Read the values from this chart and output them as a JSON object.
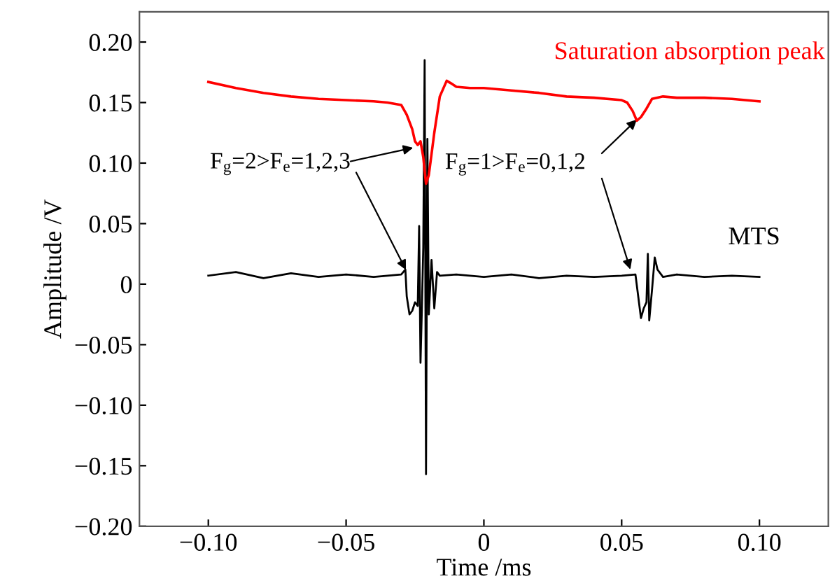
{
  "chart_data": {
    "type": "line",
    "xlabel": "Time /ms",
    "ylabel": "Amplitude /V",
    "series": [
      {
        "name": "Saturation absorption peak",
        "color": "#ff0000",
        "x": [
          -0.1,
          -0.09,
          -0.08,
          -0.07,
          -0.06,
          -0.05,
          -0.04,
          -0.035,
          -0.03,
          -0.028,
          -0.026,
          -0.025,
          -0.024,
          -0.023,
          -0.022,
          -0.021,
          -0.02,
          -0.018,
          -0.016,
          -0.0135,
          -0.012,
          -0.01,
          -0.005,
          0,
          0.01,
          0.02,
          0.03,
          0.04,
          0.05,
          0.052,
          0.054,
          0.0555,
          0.057,
          0.059,
          0.061,
          0.065,
          0.07,
          0.08,
          0.09,
          0.1
        ],
        "values": [
          0.167,
          0.162,
          0.158,
          0.155,
          0.153,
          0.152,
          0.151,
          0.15,
          0.148,
          0.14,
          0.128,
          0.118,
          0.115,
          0.118,
          0.105,
          0.083,
          0.09,
          0.125,
          0.155,
          0.168,
          0.166,
          0.163,
          0.162,
          0.162,
          0.16,
          0.158,
          0.155,
          0.154,
          0.152,
          0.15,
          0.143,
          0.135,
          0.138,
          0.145,
          0.153,
          0.155,
          0.154,
          0.154,
          0.153,
          0.151
        ]
      },
      {
        "name": "MTS",
        "color": "#000000",
        "x": [
          -0.1,
          -0.09,
          -0.08,
          -0.07,
          -0.06,
          -0.05,
          -0.04,
          -0.03,
          -0.0285,
          -0.028,
          -0.027,
          -0.026,
          -0.025,
          -0.024,
          -0.0235,
          -0.023,
          -0.0225,
          -0.022,
          -0.0215,
          -0.021,
          -0.0205,
          -0.02,
          -0.019,
          -0.018,
          -0.017,
          -0.016,
          -0.01,
          0,
          0.01,
          0.02,
          0.03,
          0.04,
          0.05,
          0.055,
          0.056,
          0.057,
          0.058,
          0.059,
          0.0595,
          0.06,
          0.061,
          0.062,
          0.063,
          0.065,
          0.07,
          0.08,
          0.09,
          0.1
        ],
        "values": [
          0.007,
          0.01,
          0.005,
          0.009,
          0.006,
          0.008,
          0.006,
          0.008,
          0.012,
          -0.01,
          -0.025,
          -0.022,
          -0.015,
          -0.018,
          0.048,
          -0.065,
          -0.02,
          0.03,
          0.185,
          -0.157,
          0.12,
          -0.025,
          0.02,
          -0.02,
          0.01,
          0.007,
          0.008,
          0.006,
          0.008,
          0.005,
          0.007,
          0.006,
          0.007,
          0.008,
          -0.01,
          -0.028,
          -0.02,
          -0.015,
          0.025,
          -0.03,
          -0.005,
          0.022,
          0.012,
          0.006,
          0.008,
          0.006,
          0.007,
          0.006
        ]
      }
    ],
    "annotations": [
      {
        "text": "F$_{g}$=2>F$_{e}$=1,2,3",
        "x": -0.025,
        "y": 0.113
      },
      {
        "text": "F$_{g}$=1>F$_{e}$=0,1,2",
        "x": 0.056,
        "y": 0.137
      }
    ],
    "xlim": [
      -0.125,
      0.125
    ],
    "ylim": [
      -0.2,
      0.225
    ],
    "xticks": [
      {
        "value": -0.1,
        "label": "−0.10"
      },
      {
        "value": -0.05,
        "label": "−0.05"
      },
      0,
      {
        "value": 0.05,
        "label": "0.05"
      },
      {
        "value": 0.1,
        "label": "0.10"
      }
    ],
    "yticks": [
      {
        "value": -0.2,
        "label": "−0.20"
      },
      {
        "value": -0.15,
        "label": "−0.15"
      },
      {
        "value": -0.1,
        "label": "−0.10"
      },
      {
        "value": -0.05,
        "label": "−0.05"
      },
      0,
      {
        "value": 0.05,
        "label": "0.05"
      },
      {
        "value": 0.1,
        "label": "0.10"
      },
      {
        "value": 0.15,
        "label": "0.15"
      },
      {
        "value": 0.2,
        "label": "0.20"
      }
    ],
    "grid": false,
    "legend": false,
    "line_style": "solid"
  }
}
